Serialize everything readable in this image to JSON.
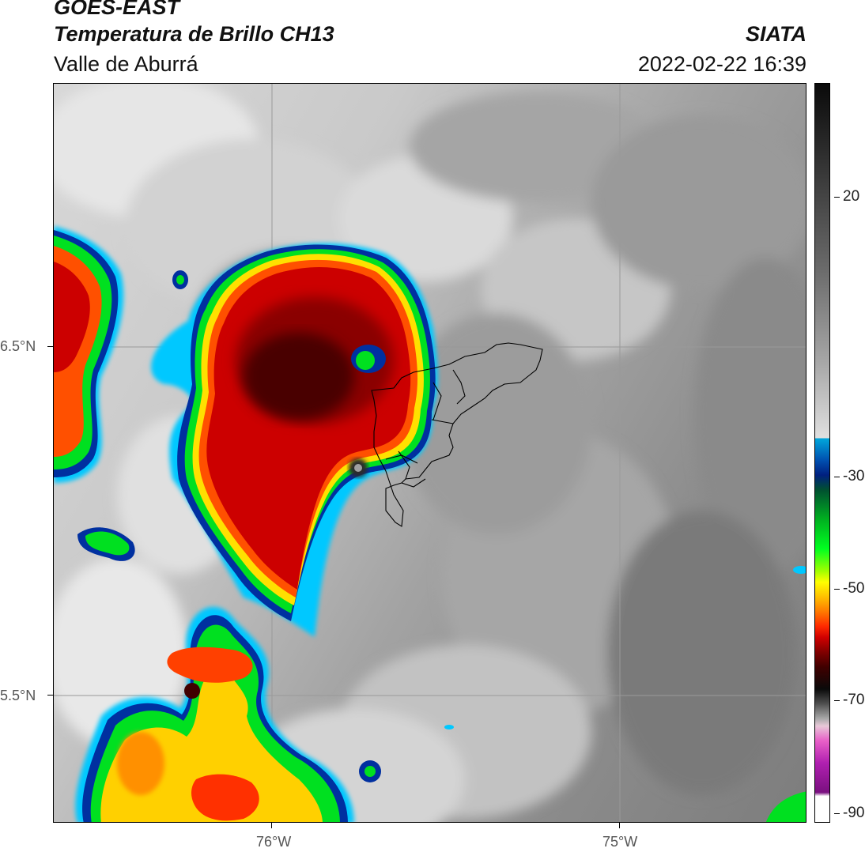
{
  "header": {
    "satellite": "GOES-EAST",
    "product": "Temperatura de Brillo CH13",
    "region": "Valle de Aburrá",
    "institution": "SIATA",
    "datetime": "2022-02-22 16:39"
  },
  "map": {
    "latitude_labels": [
      "6.5°N",
      "5.5°N"
    ],
    "longitude_labels": [
      "76°W",
      "75°W"
    ],
    "colormap_description_colors": {
      "warm_cloud_free": "#8a8a8a",
      "cold_top_red": "#d00000",
      "coldest_core": "#3a0000",
      "green_band": "#00e020",
      "blue_edge": "#00c0ff"
    }
  },
  "colorbar": {
    "tick_labels": [
      "20",
      "-30",
      "-50",
      "-70",
      "-90"
    ]
  }
}
